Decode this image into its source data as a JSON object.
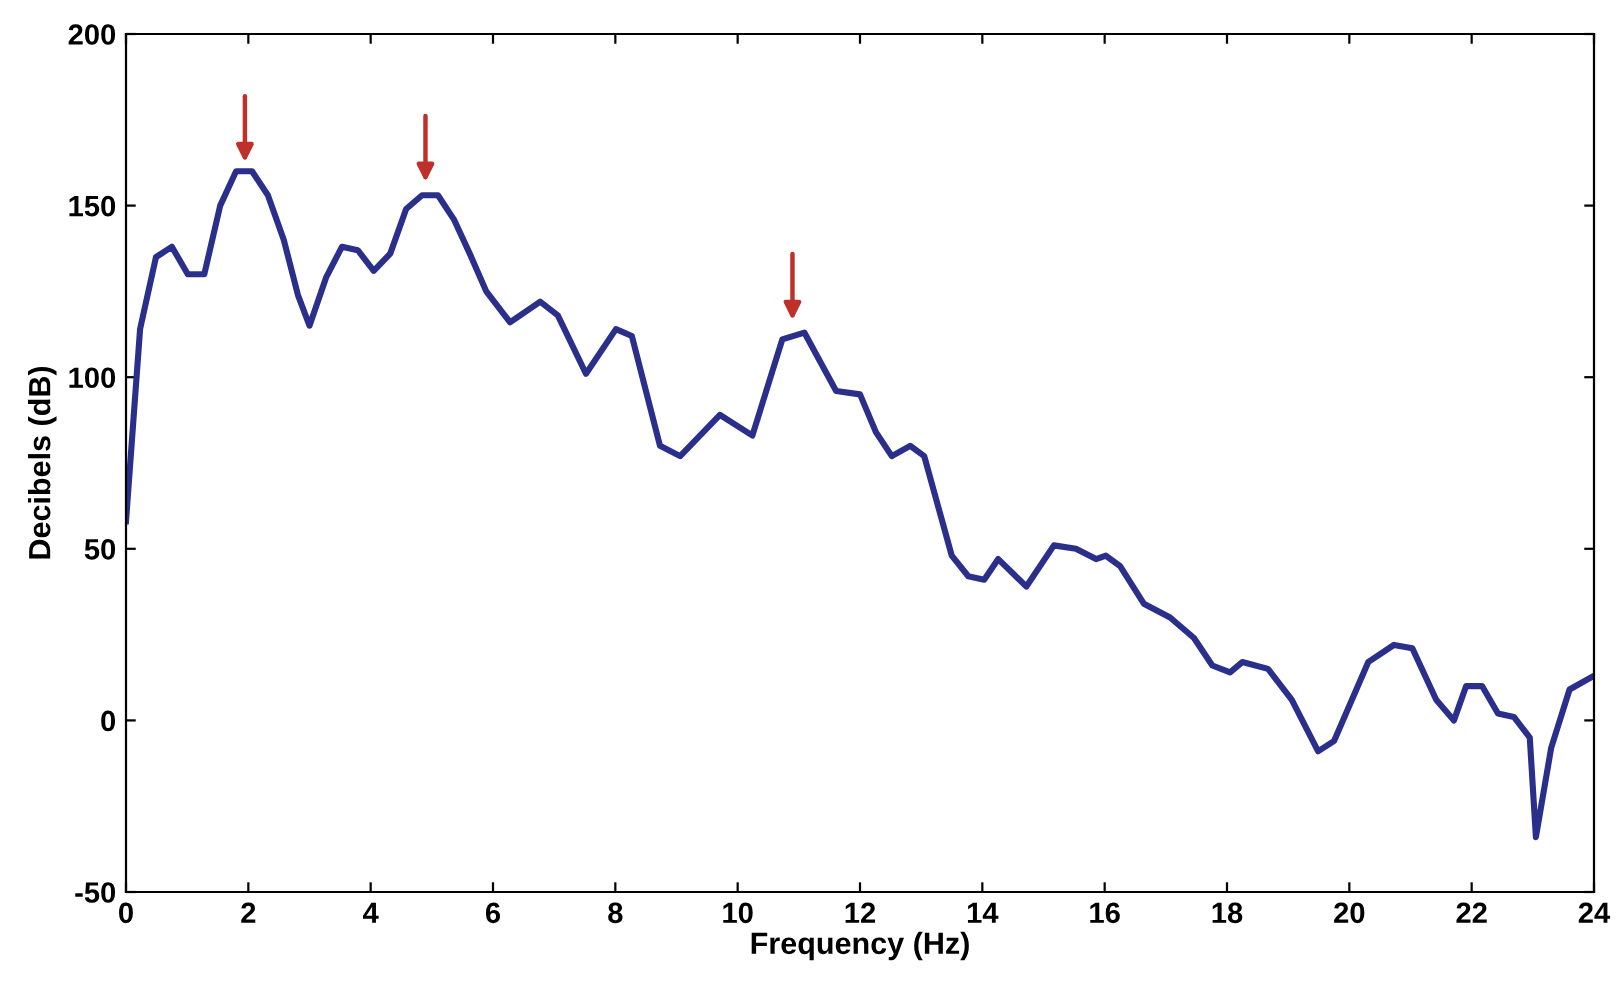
{
  "chart_data": {
    "type": "line",
    "xlabel": "Frequency (Hz)",
    "ylabel": "Decibels (dB)",
    "xlim": [
      0,
      24
    ],
    "ylim": [
      -50,
      200
    ],
    "xticks": [
      0,
      2,
      4,
      6,
      8,
      10,
      12,
      14,
      16,
      18,
      20,
      22,
      24
    ],
    "yticks": [
      -50,
      0,
      50,
      100,
      150,
      200
    ],
    "grid": false,
    "legend": false,
    "marker": "none",
    "line_style": "solid",
    "series": [
      {
        "color": "#2b2f8c",
        "x": [
          0,
          0.23,
          0.49,
          0.75,
          1.01,
          1.28,
          1.54,
          1.8,
          2.06,
          2.32,
          2.58,
          2.81,
          3.0,
          3.27,
          3.53,
          3.79,
          4.05,
          4.32,
          4.58,
          4.84,
          5.1,
          5.36,
          5.62,
          5.89,
          6.28,
          6.77,
          7.06,
          7.52,
          8.01,
          8.27,
          8.73,
          9.06,
          9.71,
          10.24,
          10.73,
          11.09,
          11.61,
          12.0,
          12.26,
          12.52,
          12.82,
          13.05,
          13.5,
          13.77,
          14.03,
          14.26,
          14.72,
          15.17,
          15.53,
          15.86,
          16.02,
          16.25,
          16.64,
          17.07,
          17.46,
          17.76,
          18.05,
          18.25,
          18.67,
          19.06,
          19.49,
          19.75,
          20.31,
          20.73,
          21.03,
          21.42,
          21.71,
          21.91,
          22.17,
          22.43,
          22.69,
          22.95,
          23.05,
          23.3,
          23.6,
          24
        ],
        "values": [
          58,
          114,
          135,
          138,
          130,
          130,
          150,
          160,
          160,
          153,
          140,
          124,
          115,
          129,
          138,
          137,
          131,
          136,
          149,
          153,
          153,
          146,
          136,
          125,
          116,
          122,
          118,
          101,
          114,
          112,
          80,
          77,
          89,
          83,
          111,
          113,
          96,
          95,
          84,
          77,
          80,
          77,
          48,
          42,
          41,
          47,
          39,
          51,
          50,
          47,
          48,
          45,
          34,
          30,
          24,
          16,
          14,
          17,
          15,
          6,
          -9,
          -6,
          17,
          22,
          21,
          6,
          0,
          10,
          10,
          2,
          1,
          -5,
          -34,
          -8,
          9,
          13
        ]
      }
    ]
  }
}
